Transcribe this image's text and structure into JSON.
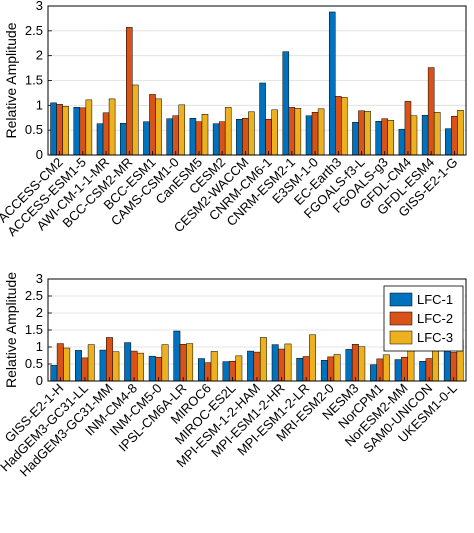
{
  "colors": {
    "lfc1": "#0072BD",
    "lfc2": "#D95319",
    "lfc3": "#EDB120",
    "axis": "#000000",
    "grid": "#DDDDDD"
  },
  "chart_data": [
    {
      "type": "bar",
      "ylabel": "Relative Amplitude",
      "ylim": [
        0,
        3
      ],
      "yticks": [
        "0",
        "0.5",
        "1",
        "1.5",
        "2",
        "2.5",
        "3"
      ],
      "grid": true,
      "legend": "none",
      "categories": [
        "ACCESS-CM2",
        "ACCESS-ESM1-5",
        "AWI-CM-1-1-MR",
        "BCC-CSM2-MR",
        "BCC-ESM1",
        "CAMS-CSM1-0",
        "CanESM5",
        "CESM2",
        "CESM2-WACCM",
        "CNRM-CM6-1",
        "CNRM-ESM2-1",
        "E3SM-1-0",
        "EC-Earth3",
        "FGOALS-f3-L",
        "FGOALS-g3",
        "GFDL-CM4",
        "GFDL-ESM4",
        "GISS-E2-1-G"
      ],
      "series": [
        {
          "name": "LFC-1",
          "values": [
            1.05,
            0.96,
            0.63,
            0.64,
            0.67,
            0.73,
            0.74,
            0.63,
            0.72,
            1.45,
            2.08,
            0.79,
            2.88,
            0.66,
            0.68,
            0.52,
            0.8,
            0.53
          ]
        },
        {
          "name": "LFC-2",
          "values": [
            1.02,
            0.95,
            0.85,
            2.57,
            1.22,
            0.79,
            0.67,
            0.67,
            0.74,
            0.72,
            0.96,
            0.86,
            1.18,
            0.89,
            0.73,
            1.08,
            1.76,
            0.78
          ]
        },
        {
          "name": "LFC-3",
          "values": [
            0.98,
            1.11,
            1.13,
            1.41,
            1.13,
            1.01,
            0.82,
            0.96,
            0.87,
            0.91,
            0.94,
            0.93,
            1.16,
            0.88,
            0.7,
            0.79,
            0.86,
            0.9
          ]
        }
      ]
    },
    {
      "type": "bar",
      "ylabel": "Relative Amplitude",
      "ylim": [
        0,
        3
      ],
      "yticks": [
        "0",
        "0.5",
        "1",
        "1.5",
        "2",
        "2.5",
        "3"
      ],
      "grid": true,
      "legend": "top-right",
      "categories": [
        "GISS-E2-1-H",
        "HadGEM3-GC31-LL",
        "HadGEM3-GC31-MM",
        "INM-CM4-8",
        "INM-CM5-0",
        "IPSL-CM6A-LR",
        "MIROC6",
        "MIROC-ES2L",
        "MPI-ESM-1-2-HAM",
        "MPI-ESM1-2-HR",
        "MPI-ESM1-2-LR",
        "MRI-ESM2-0",
        "NESM3",
        "NorCPM1",
        "NorESM2-MM",
        "SAM0-UNICON",
        "UKESM1-0-L"
      ],
      "series": [
        {
          "name": "LFC-1",
          "values": [
            0.46,
            0.9,
            0.91,
            1.13,
            0.73,
            1.47,
            0.66,
            0.57,
            0.88,
            1.07,
            0.67,
            0.61,
            0.93,
            0.48,
            0.63,
            0.58,
            0.93
          ]
        },
        {
          "name": "LFC-2",
          "values": [
            1.1,
            0.68,
            1.28,
            0.88,
            0.7,
            1.08,
            0.54,
            0.58,
            0.85,
            0.94,
            0.72,
            0.71,
            1.08,
            0.65,
            0.7,
            0.66,
            0.84
          ]
        },
        {
          "name": "LFC-3",
          "values": [
            0.97,
            1.07,
            0.86,
            0.82,
            1.07,
            1.1,
            0.87,
            0.74,
            1.28,
            1.09,
            1.36,
            0.78,
            1.01,
            0.77,
            1.18,
            0.9,
            1.21
          ]
        }
      ]
    }
  ]
}
